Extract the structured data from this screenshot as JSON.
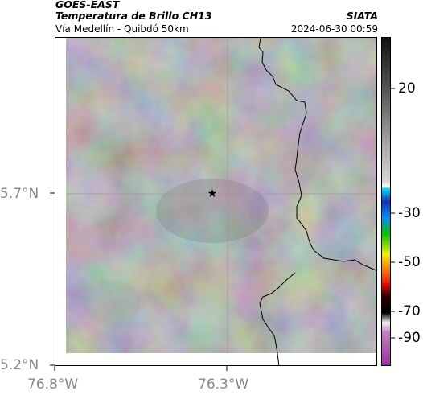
{
  "header": {
    "satellite": "GOES-EAST",
    "product": "Temperatura de Brillo CH13",
    "organization": "SIATA",
    "area": "Vía Medellín - Quibdó 50km",
    "datetime": "2024-06-30 00:59"
  },
  "map": {
    "lat_ticks": [
      "5.7°N",
      "5.2°N"
    ],
    "lon_ticks": [
      "76.8°W",
      "76.3°W"
    ],
    "marker_icon": "star-icon"
  },
  "colorbar": {
    "ticks": [
      "20",
      "-30",
      "-50",
      "-70",
      "-90"
    ]
  },
  "colors": {
    "cloud_gray": "#8a8a8a",
    "border_line": "#000000"
  }
}
